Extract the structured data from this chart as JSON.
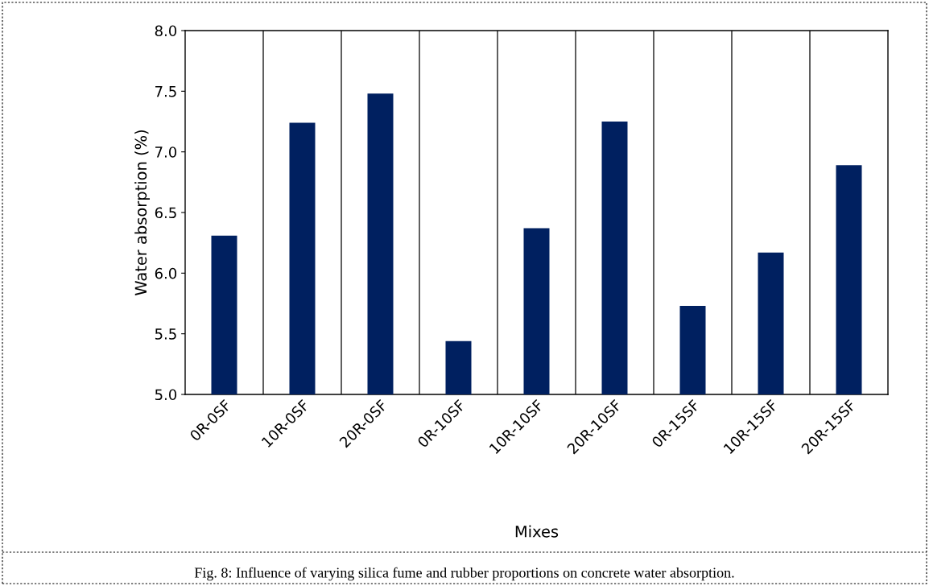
{
  "chart_data": {
    "type": "bar",
    "xlabel": "Mixes",
    "ylabel": "Water absorption (%)",
    "categories": [
      "0R-0SF",
      "10R-0SF",
      "20R-0SF",
      "0R-10SF",
      "10R-10SF",
      "20R-10SF",
      "0R-15SF",
      "10R-15SF",
      "20R-15SF"
    ],
    "values": [
      6.31,
      7.24,
      7.48,
      5.44,
      6.37,
      7.25,
      5.73,
      6.17,
      6.89
    ],
    "color": "#002060",
    "ylim": [
      5.0,
      8.0
    ],
    "yticks": [
      {
        "value": 5.0,
        "label": "5.0"
      },
      {
        "value": 5.5,
        "label": "5.5"
      },
      {
        "value": 6.0,
        "label": "6.0"
      },
      {
        "value": 6.5,
        "label": "6.5"
      },
      {
        "value": 7.0,
        "label": "7.0"
      },
      {
        "value": 7.5,
        "label": "7.5"
      },
      {
        "value": 8.0,
        "label": "8.0"
      }
    ],
    "grid": "x",
    "annotations": [
      "Fig. 8: Influence of varying silica fume and rubber proportions on concrete water absorption."
    ]
  }
}
